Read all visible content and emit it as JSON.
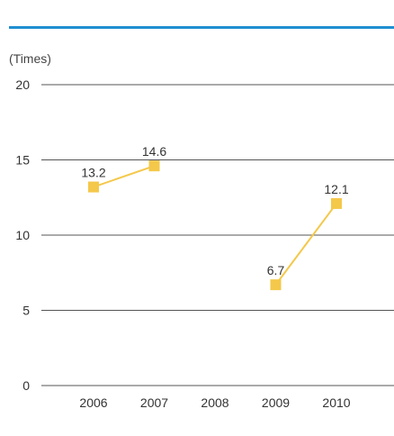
{
  "colors": {
    "top_rule": "#1f8fd1",
    "series": "#f4c84a",
    "axis": "#555555"
  },
  "chart_data": {
    "type": "line",
    "unit_label": "(Times)",
    "categories": [
      "2006",
      "2007",
      "2008",
      "2009",
      "2010"
    ],
    "series": [
      {
        "values": [
          13.2,
          14.6,
          null,
          6.7,
          12.1
        ]
      }
    ],
    "data_labels": [
      "13.2",
      "14.6",
      "",
      "6.7",
      "12.1"
    ],
    "ylim": [
      0,
      20
    ],
    "yticks": [
      0,
      5,
      10,
      15,
      20
    ],
    "grid": true,
    "legend": "none"
  }
}
